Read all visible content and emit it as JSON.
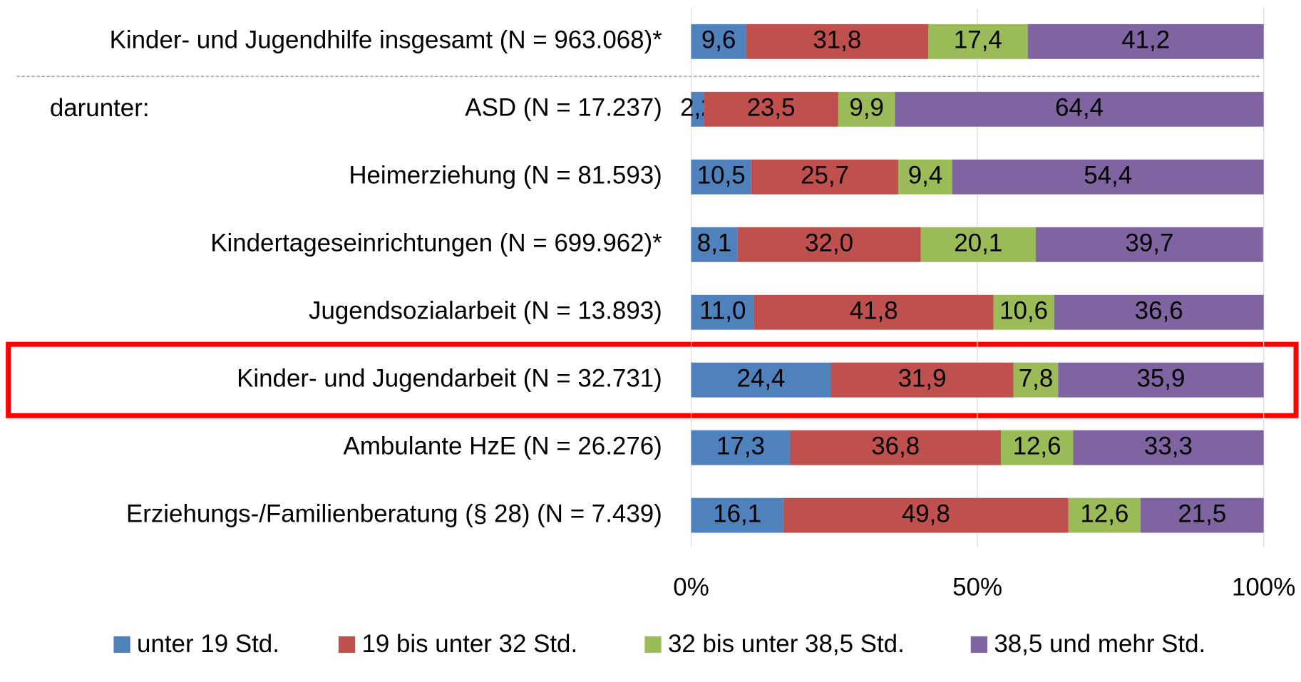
{
  "chart_data": {
    "type": "stacked_bar_horizontal",
    "annotation": "darunter:",
    "categories": [
      "Kinder- und Jugendhilfe insgesamt (N = 963.068)*",
      "ASD (N = 17.237)",
      "Heimerziehung (N = 81.593)",
      "Kindertageseinrichtungen (N = 699.962)*",
      "Jugendsozialarbeit (N = 13.893)",
      "Kinder- und Jugendarbeit (N = 32.731)",
      "Ambulante HzE (N = 26.276)",
      "Erziehungs-/Familienberatung (§ 28) (N = 7.439)"
    ],
    "series": [
      {
        "name": "unter 19 Std.",
        "color": "#4f81bd",
        "label_color": "#ffffff",
        "values": [
          9.6,
          2.2,
          10.5,
          8.1,
          11.0,
          24.4,
          17.3,
          16.1
        ],
        "value_labels": [
          "9,6",
          "2,2",
          "10,5",
          "8,1",
          "11,0",
          "24,4",
          "17,3",
          "16,1"
        ]
      },
      {
        "name": "19 bis unter 32 Std.",
        "color": "#c0504d",
        "label_color": "#ffffff",
        "values": [
          31.8,
          23.5,
          25.7,
          32.0,
          41.8,
          31.9,
          36.8,
          49.8
        ],
        "value_labels": [
          "31,8",
          "23,5",
          "25,7",
          "32,0",
          "41,8",
          "31,9",
          "36,8",
          "49,8"
        ]
      },
      {
        "name": "32 bis unter 38,5 Std.",
        "color": "#9bbb59",
        "label_color": "#000000",
        "values": [
          17.4,
          9.9,
          9.4,
          20.1,
          10.6,
          7.8,
          12.6,
          12.6
        ],
        "value_labels": [
          "17,4",
          "9,9",
          "9,4",
          "20,1",
          "10,6",
          "7,8",
          "12,6",
          "12,6"
        ]
      },
      {
        "name": "38,5 und mehr Std.",
        "color": "#8064a2",
        "label_color": "#ffffff",
        "values": [
          41.2,
          64.4,
          54.4,
          39.7,
          36.6,
          35.9,
          33.3,
          21.5
        ],
        "value_labels": [
          "41,2",
          "64,4",
          "54,4",
          "39,7",
          "36,6",
          "35,9",
          "33,3",
          "21,5"
        ]
      }
    ],
    "xlim": [
      0,
      100
    ],
    "xticks": [
      {
        "value": 0,
        "label": "0%"
      },
      {
        "value": 50,
        "label": "50%"
      },
      {
        "value": 100,
        "label": "100%"
      }
    ],
    "grid": true,
    "legend": "bottom"
  }
}
